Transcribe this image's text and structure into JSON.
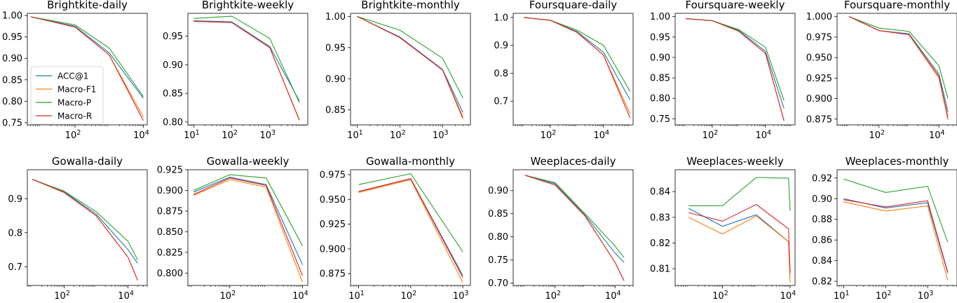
{
  "colors": {
    "ACC@1": "#1f77b4",
    "Macro-F1": "#ff7f0e",
    "Macro-P": "#2ca02c",
    "Macro-R": "#d62728"
  },
  "chart_data": [
    {
      "type": "line",
      "title": "Brightkite-daily",
      "xscale": "log",
      "xlim": [
        4,
        13000
      ],
      "xticks": [
        100,
        10000
      ],
      "xtick_labels": [
        "10^2",
        "10^4"
      ],
      "ylim": [
        0.745,
        1.005
      ],
      "yticks": [
        0.75,
        0.8,
        0.85,
        0.9,
        0.95,
        1.0
      ],
      "ytick_labels": [
        "0.75",
        "0.80",
        "0.85",
        "0.90",
        "0.95",
        "1.00"
      ],
      "legend": "inside-left",
      "x": [
        5,
        100,
        1000,
        10000
      ],
      "series": [
        {
          "name": "ACC@1",
          "values": [
            0.997,
            0.975,
            0.913,
            0.807
          ]
        },
        {
          "name": "Macro-F1",
          "values": [
            0.997,
            0.973,
            0.908,
            0.763
          ]
        },
        {
          "name": "Macro-P",
          "values": [
            0.997,
            0.978,
            0.924,
            0.811
          ]
        },
        {
          "name": "Macro-R",
          "values": [
            0.997,
            0.973,
            0.908,
            0.755
          ]
        }
      ]
    },
    {
      "type": "line",
      "title": "Brightkite-weekly",
      "xscale": "log",
      "xlim": [
        7,
        10000
      ],
      "xticks": [
        10,
        100,
        1000
      ],
      "xtick_labels": [
        "10^1",
        "10^2",
        "10^3"
      ],
      "ylim": [
        0.795,
        0.99
      ],
      "yticks": [
        0.8,
        0.85,
        0.9,
        0.95
      ],
      "ytick_labels": [
        "0.80",
        "0.85",
        "0.90",
        "0.95"
      ],
      "x": [
        10,
        100,
        1000,
        6000
      ],
      "series": [
        {
          "name": "ACC@1",
          "values": [
            0.977,
            0.975,
            0.932,
            0.837
          ]
        },
        {
          "name": "Macro-F1",
          "values": [
            0.976,
            0.974,
            0.93,
            0.804
          ]
        },
        {
          "name": "Macro-P",
          "values": [
            0.981,
            0.985,
            0.946,
            0.834
          ]
        },
        {
          "name": "Macro-R",
          "values": [
            0.976,
            0.974,
            0.93,
            0.803
          ]
        }
      ]
    },
    {
      "type": "line",
      "title": "Brightkite-monthly",
      "xscale": "log",
      "xlim": [
        7,
        4500
      ],
      "xticks": [
        10,
        100,
        1000
      ],
      "xtick_labels": [
        "10^1",
        "10^2",
        "10^3"
      ],
      "ylim": [
        0.826,
        1.005
      ],
      "yticks": [
        0.85,
        0.9,
        0.95,
        1.0
      ],
      "ytick_labels": [
        "0.85",
        "0.90",
        "0.95",
        "1.00"
      ],
      "x": [
        10,
        100,
        1000,
        3000
      ],
      "series": [
        {
          "name": "ACC@1",
          "values": [
            1.0,
            0.967,
            0.915,
            0.846
          ]
        },
        {
          "name": "Macro-F1",
          "values": [
            1.0,
            0.966,
            0.914,
            0.835
          ]
        },
        {
          "name": "Macro-P",
          "values": [
            1.0,
            0.978,
            0.933,
            0.869
          ]
        },
        {
          "name": "Macro-R",
          "values": [
            1.0,
            0.966,
            0.914,
            0.838
          ]
        }
      ]
    },
    {
      "type": "line",
      "title": "Foursquare-daily",
      "xscale": "log",
      "xlim": [
        4,
        130000
      ],
      "xticks": [
        100,
        10000
      ],
      "xtick_labels": [
        "10^2",
        "10^4"
      ],
      "ylim": [
        0.615,
        1.015
      ],
      "yticks": [
        0.7,
        0.8,
        0.9,
        1.0
      ],
      "ytick_labels": [
        "0.7",
        "0.8",
        "0.9",
        "1.0"
      ],
      "x": [
        10,
        100,
        1000,
        10000,
        100000
      ],
      "series": [
        {
          "name": "ACC@1",
          "values": [
            1.0,
            0.99,
            0.95,
            0.875,
            0.705
          ]
        },
        {
          "name": "Macro-F1",
          "values": [
            1.0,
            0.99,
            0.947,
            0.865,
            0.655
          ]
        },
        {
          "name": "Macro-P",
          "values": [
            1.0,
            0.99,
            0.955,
            0.9,
            0.735
          ]
        },
        {
          "name": "Macro-R",
          "values": [
            1.0,
            0.99,
            0.947,
            0.865,
            0.64
          ]
        }
      ]
    },
    {
      "type": "line",
      "title": "Foursquare-weekly",
      "xscale": "log",
      "xlim": [
        4,
        130000
      ],
      "xticks": [
        100,
        10000
      ],
      "xtick_labels": [
        "10^2",
        "10^4"
      ],
      "ylim": [
        0.735,
        1.008
      ],
      "yticks": [
        0.75,
        0.8,
        0.85,
        0.9,
        0.95,
        1.0
      ],
      "ytick_labels": [
        "0.75",
        "0.80",
        "0.85",
        "0.90",
        "0.95",
        "1.00"
      ],
      "x": [
        10,
        100,
        1000,
        10000,
        50000
      ],
      "series": [
        {
          "name": "ACC@1",
          "values": [
            0.995,
            0.99,
            0.966,
            0.915,
            0.775
          ]
        },
        {
          "name": "Macro-F1",
          "values": [
            0.995,
            0.99,
            0.964,
            0.91,
            0.745
          ]
        },
        {
          "name": "Macro-P",
          "values": [
            0.995,
            0.99,
            0.968,
            0.925,
            0.795
          ]
        },
        {
          "name": "Macro-R",
          "values": [
            0.995,
            0.99,
            0.964,
            0.91,
            0.745
          ]
        }
      ]
    },
    {
      "type": "line",
      "title": "Foursquare-monthly",
      "xscale": "log",
      "xlim": [
        4,
        40000
      ],
      "xticks": [
        100,
        10000
      ],
      "xtick_labels": [
        "10^2",
        "10^4"
      ],
      "ylim": [
        0.868,
        1.004
      ],
      "yticks": [
        0.875,
        0.9,
        0.925,
        0.95,
        0.975,
        1.0
      ],
      "ytick_labels": [
        "0.875",
        "0.900",
        "0.925",
        "0.950",
        "0.975",
        "1.000"
      ],
      "x": [
        10,
        100,
        1000,
        10000,
        20000
      ],
      "series": [
        {
          "name": "ACC@1",
          "values": [
            1.0,
            0.983,
            0.979,
            0.93,
            0.884
          ]
        },
        {
          "name": "Macro-F1",
          "values": [
            1.0,
            0.983,
            0.978,
            0.925,
            0.874
          ]
        },
        {
          "name": "Macro-P",
          "values": [
            1.0,
            0.986,
            0.982,
            0.94,
            0.9
          ]
        },
        {
          "name": "Macro-R",
          "values": [
            1.0,
            0.983,
            0.978,
            0.927,
            0.877
          ]
        }
      ]
    },
    {
      "type": "line",
      "title": "Gowalla-daily",
      "xscale": "log",
      "xlim": [
        7,
        40000
      ],
      "xticks": [
        100,
        10000
      ],
      "xtick_labels": [
        "10^2",
        "10^4"
      ],
      "ylim": [
        0.645,
        0.985
      ],
      "yticks": [
        0.7,
        0.8,
        0.9
      ],
      "ytick_labels": [
        "0.7",
        "0.8",
        "0.9"
      ],
      "x": [
        10,
        100,
        1000,
        10000,
        20000
      ],
      "series": [
        {
          "name": "ACC@1",
          "values": [
            0.957,
            0.92,
            0.855,
            0.75,
            0.71
          ]
        },
        {
          "name": "Macro-F1",
          "values": [
            0.957,
            0.918,
            0.85,
            0.728,
            0.66
          ]
        },
        {
          "name": "Macro-P",
          "values": [
            0.957,
            0.922,
            0.862,
            0.775,
            0.72
          ]
        },
        {
          "name": "Macro-R",
          "values": [
            0.957,
            0.918,
            0.85,
            0.728,
            0.66
          ]
        }
      ]
    },
    {
      "type": "line",
      "title": "Gowalla-weekly",
      "xscale": "log",
      "xlim": [
        7,
        14000
      ],
      "xticks": [
        100,
        10000
      ],
      "xtick_labels": [
        "10^2",
        "10^4"
      ],
      "ylim": [
        0.785,
        0.925
      ],
      "yticks": [
        0.8,
        0.825,
        0.85,
        0.875,
        0.9,
        0.925
      ],
      "ytick_labels": [
        "0.800",
        "0.825",
        "0.850",
        "0.875",
        "0.900",
        "0.925"
      ],
      "x": [
        10,
        100,
        1000,
        10000
      ],
      "series": [
        {
          "name": "ACC@1",
          "values": [
            0.898,
            0.916,
            0.907,
            0.81
          ]
        },
        {
          "name": "Macro-F1",
          "values": [
            0.894,
            0.913,
            0.904,
            0.789
          ]
        },
        {
          "name": "Macro-P",
          "values": [
            0.9,
            0.919,
            0.915,
            0.833
          ]
        },
        {
          "name": "Macro-R",
          "values": [
            0.895,
            0.915,
            0.906,
            0.797
          ]
        }
      ]
    },
    {
      "type": "line",
      "title": "Gowalla-monthly",
      "xscale": "log",
      "xlim": [
        7,
        1400
      ],
      "xticks": [
        10,
        100,
        1000
      ],
      "xtick_labels": [
        "10^1",
        "10^2",
        "10^3"
      ],
      "ylim": [
        0.863,
        0.98
      ],
      "yticks": [
        0.875,
        0.9,
        0.925,
        0.95,
        0.975
      ],
      "ytick_labels": [
        "0.875",
        "0.900",
        "0.925",
        "0.950",
        "0.975"
      ],
      "x": [
        10,
        100,
        1000
      ],
      "series": [
        {
          "name": "ACC@1",
          "values": [
            0.958,
            0.971,
            0.873
          ]
        },
        {
          "name": "Macro-F1",
          "values": [
            0.957,
            0.97,
            0.866
          ]
        },
        {
          "name": "Macro-P",
          "values": [
            0.965,
            0.976,
            0.897
          ]
        },
        {
          "name": "Macro-R",
          "values": [
            0.958,
            0.971,
            0.871
          ]
        }
      ]
    },
    {
      "type": "line",
      "title": "Weeplaces-daily",
      "xscale": "log",
      "xlim": [
        4,
        40000
      ],
      "xticks": [
        100,
        10000
      ],
      "xtick_labels": [
        "10^2",
        "10^4"
      ],
      "ylim": [
        0.695,
        0.945
      ],
      "yticks": [
        0.7,
        0.75,
        0.8,
        0.85,
        0.9
      ],
      "ytick_labels": [
        "0.70",
        "0.75",
        "0.80",
        "0.85",
        "0.90"
      ],
      "x": [
        10,
        100,
        1000,
        10000,
        20000
      ],
      "series": [
        {
          "name": "ACC@1",
          "values": [
            0.933,
            0.915,
            0.847,
            0.765,
            0.745
          ]
        },
        {
          "name": "Macro-F1",
          "values": [
            0.933,
            0.912,
            0.845,
            0.745,
            0.705
          ]
        },
        {
          "name": "Macro-P",
          "values": [
            0.933,
            0.917,
            0.85,
            0.78,
            0.755
          ]
        },
        {
          "name": "Macro-R",
          "values": [
            0.933,
            0.912,
            0.845,
            0.745,
            0.705
          ]
        }
      ]
    },
    {
      "type": "line",
      "title": "Weeplaces-weekly",
      "xscale": "log",
      "xlim": [
        4,
        14000
      ],
      "xticks": [
        100,
        10000
      ],
      "xtick_labels": [
        "10^2",
        "10^4"
      ],
      "ylim": [
        0.8035,
        0.8485
      ],
      "yticks": [
        0.81,
        0.82,
        0.83,
        0.84
      ],
      "ytick_labels": [
        "0.81",
        "0.82",
        "0.83",
        "0.84"
      ],
      "x": [
        10,
        100,
        1000,
        9000,
        10000
      ],
      "series": [
        {
          "name": "ACC@1",
          "values": [
            0.8335,
            0.8265,
            0.831,
            0.8205,
            0.808
          ]
        },
        {
          "name": "Macro-F1",
          "values": [
            0.83,
            0.8235,
            0.8305,
            0.8205,
            0.8045
          ]
        },
        {
          "name": "Macro-P",
          "values": [
            0.8345,
            0.8345,
            0.8455,
            0.8452,
            0.8325
          ]
        },
        {
          "name": "Macro-R",
          "values": [
            0.8318,
            0.8285,
            0.835,
            0.8255,
            0.8085
          ]
        }
      ]
    },
    {
      "type": "line",
      "title": "Weeplaces-monthly",
      "xscale": "log",
      "xlim": [
        7,
        5000
      ],
      "xticks": [
        10,
        100,
        1000
      ],
      "xtick_labels": [
        "10^1",
        "10^2",
        "10^3"
      ],
      "ylim": [
        0.816,
        0.928
      ],
      "yticks": [
        0.82,
        0.84,
        0.86,
        0.88,
        0.9,
        0.92
      ],
      "ytick_labels": [
        "0.82",
        "0.84",
        "0.86",
        "0.88",
        "0.90",
        "0.92"
      ],
      "x": [
        10,
        100,
        1000,
        3000
      ],
      "series": [
        {
          "name": "ACC@1",
          "values": [
            0.9,
            0.891,
            0.896,
            0.828
          ]
        },
        {
          "name": "Macro-F1",
          "values": [
            0.897,
            0.888,
            0.893,
            0.821
          ]
        },
        {
          "name": "Macro-P",
          "values": [
            0.919,
            0.906,
            0.912,
            0.858
          ]
        },
        {
          "name": "Macro-R",
          "values": [
            0.899,
            0.892,
            0.898,
            0.829
          ]
        }
      ]
    }
  ]
}
